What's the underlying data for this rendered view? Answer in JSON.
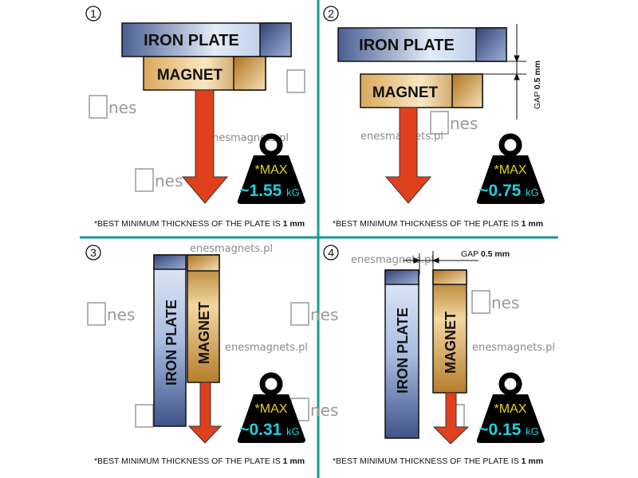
{
  "colors": {
    "divider": "#1a9a96",
    "iron": "#9fb4dc",
    "magnet": "#c8923a",
    "arrow": "#e0401c",
    "weight": "#000000",
    "max_text": "#e8d21c",
    "value_text": "#1fd0e0"
  },
  "watermark": {
    "site": "enesmagnets.pl",
    "logo": "nes"
  },
  "panels": [
    {
      "number": "1",
      "iron_label": "IRON PLATE",
      "magnet_label": "MAGNET",
      "max_label": "*MAX",
      "value": "~1.55",
      "unit": "kG",
      "footnote": "*BEST MINIMUM THICKNESS OF THE PLATE IS ",
      "footnote_bold": "1 mm"
    },
    {
      "number": "2",
      "iron_label": "IRON PLATE",
      "magnet_label": "MAGNET",
      "gap_label": "GAP",
      "gap_value": "0.5 mm",
      "max_label": "*MAX",
      "value": "~0.75",
      "unit": "kG",
      "footnote": "*BEST MINIMUM THICKNESS OF THE PLATE IS ",
      "footnote_bold": "1 mm"
    },
    {
      "number": "3",
      "iron_label": "IRON  PLATE",
      "magnet_label": "MAGNET",
      "max_label": "*MAX",
      "value": "~0.31",
      "unit": "kG",
      "footnote": "*BEST MINIMUM THICKNESS OF THE PLATE IS ",
      "footnote_bold": "1 mm"
    },
    {
      "number": "4",
      "iron_label": "IRON PLATE",
      "magnet_label": "MAGNET",
      "gap_label": "GAP",
      "gap_value": "0.5 mm",
      "max_label": "*MAX",
      "value": "~0.15",
      "unit": "kG",
      "footnote": "*BEST MINIMUM THICKNESS OF THE PLATE IS ",
      "footnote_bold": "1 mm"
    }
  ]
}
